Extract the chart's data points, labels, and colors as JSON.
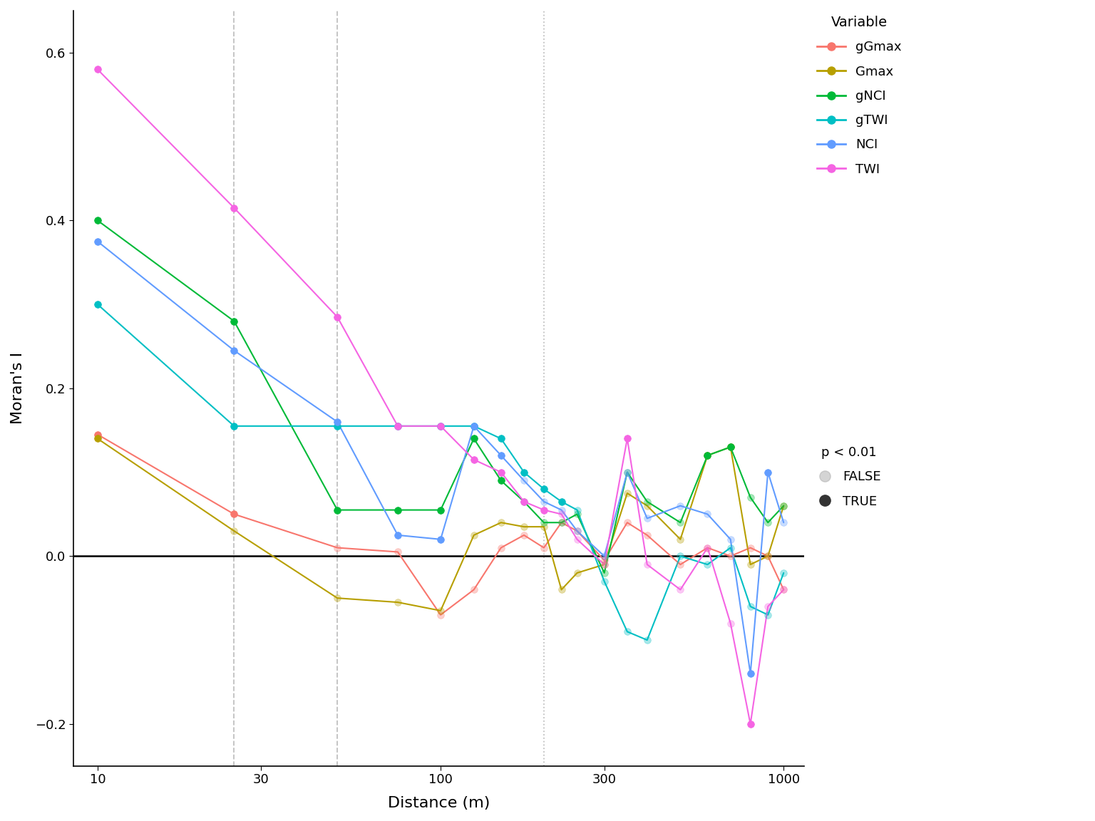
{
  "title": "",
  "xlabel": "Distance (m)",
  "ylabel": "Moran's I",
  "background_color": "#ffffff",
  "panel_color": "#ffffff",
  "ylim": [
    -0.25,
    0.65
  ],
  "yticks": [
    -0.2,
    0.0,
    0.2,
    0.4,
    0.6
  ],
  "vline_dashed": [
    25,
    50
  ],
  "vline_dotted": [
    200
  ],
  "colors": {
    "gGmax": "#F8766D",
    "Gmax": "#B79F00",
    "gNCI": "#00BA38",
    "gTWI": "#00BFC4",
    "NCI": "#619CFF",
    "TWI": "#F564E3"
  },
  "x_positions": [
    10,
    25,
    50,
    75,
    100,
    125,
    150,
    175,
    200,
    225,
    250,
    300,
    350,
    400,
    500,
    600,
    700,
    800,
    900,
    1000
  ],
  "series": {
    "gGmax": [
      0.145,
      0.05,
      0.01,
      0.005,
      -0.07,
      -0.04,
      0.01,
      0.025,
      0.01,
      0.04,
      0.03,
      -0.005,
      0.04,
      0.025,
      -0.01,
      0.01,
      0.0,
      0.01,
      0.0,
      -0.04
    ],
    "Gmax": [
      0.14,
      0.03,
      -0.05,
      -0.055,
      -0.065,
      0.025,
      0.04,
      0.035,
      0.035,
      -0.04,
      -0.02,
      -0.01,
      0.075,
      0.06,
      0.02,
      0.12,
      0.13,
      -0.01,
      0.0,
      0.06
    ],
    "gNCI": [
      0.4,
      0.28,
      0.055,
      0.055,
      0.055,
      0.14,
      0.09,
      0.065,
      0.04,
      0.04,
      0.05,
      -0.02,
      0.1,
      0.065,
      0.04,
      0.12,
      0.13,
      0.07,
      0.04,
      0.06
    ],
    "gTWI": [
      0.3,
      0.155,
      0.155,
      0.155,
      0.155,
      0.155,
      0.14,
      0.1,
      0.08,
      0.065,
      0.055,
      -0.03,
      -0.09,
      -0.1,
      0.0,
      -0.01,
      0.01,
      -0.06,
      -0.07,
      -0.02
    ],
    "NCI": [
      0.375,
      0.245,
      0.16,
      0.025,
      0.02,
      0.155,
      0.12,
      0.09,
      0.065,
      0.055,
      0.03,
      0.0,
      0.1,
      0.045,
      0.06,
      0.05,
      0.02,
      -0.14,
      0.1,
      0.04
    ],
    "TWI": [
      0.58,
      0.415,
      0.285,
      0.155,
      0.155,
      0.115,
      0.1,
      0.065,
      0.055,
      0.05,
      0.02,
      -0.01,
      0.14,
      -0.01,
      -0.04,
      0.01,
      -0.08,
      -0.2,
      -0.06,
      -0.04
    ]
  },
  "sig_points": {
    "gGmax": [
      true,
      true,
      false,
      false,
      false,
      false,
      false,
      false,
      false,
      false,
      false,
      false,
      false,
      false,
      false,
      false,
      false,
      false,
      false,
      false
    ],
    "Gmax": [
      true,
      false,
      false,
      false,
      false,
      false,
      false,
      false,
      false,
      false,
      false,
      false,
      false,
      false,
      false,
      true,
      true,
      false,
      false,
      false
    ],
    "gNCI": [
      true,
      true,
      true,
      true,
      true,
      true,
      true,
      false,
      false,
      false,
      false,
      false,
      false,
      false,
      false,
      true,
      true,
      false,
      false,
      false
    ],
    "gTWI": [
      true,
      true,
      true,
      true,
      true,
      true,
      true,
      true,
      true,
      true,
      false,
      false,
      false,
      false,
      false,
      false,
      false,
      false,
      false,
      false
    ],
    "NCI": [
      true,
      true,
      true,
      true,
      true,
      true,
      true,
      false,
      false,
      false,
      false,
      false,
      false,
      false,
      false,
      false,
      false,
      true,
      true,
      false
    ],
    "TWI": [
      true,
      true,
      true,
      true,
      true,
      true,
      true,
      true,
      true,
      false,
      false,
      false,
      true,
      false,
      false,
      false,
      false,
      true,
      false,
      false
    ]
  }
}
